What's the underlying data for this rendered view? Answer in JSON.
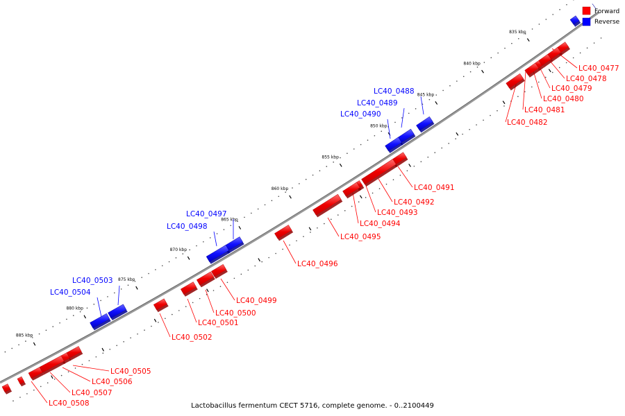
{
  "title": "Lactobacillus fermentum CECT 5716, complete genome. - 0..2100449",
  "legend": {
    "forward_label": "Forward",
    "reverse_label": "Reverse",
    "forward_color": "#ff0000",
    "reverse_color": "#0000ff"
  },
  "ticks": [
    "835 kbp",
    "840 kbp",
    "845 kbp",
    "850 kbp",
    "855 kbp",
    "860 kbp",
    "865 kbp",
    "870 kbp",
    "875 kbp",
    "880 kbp",
    "885 kbp"
  ],
  "forward_genes": [
    "LC40_0477",
    "LC40_0478",
    "LC40_0479",
    "LC40_0480",
    "LC40_0481",
    "LC40_0482",
    "LC40_0491",
    "LC40_0492",
    "LC40_0493",
    "LC40_0494",
    "LC40_0495",
    "LC40_0496",
    "LC40_0499",
    "LC40_0500",
    "LC40_0501",
    "LC40_0502",
    "LC40_0505",
    "LC40_0506",
    "LC40_0507",
    "LC40_0508"
  ],
  "reverse_genes": [
    "LC40_0488",
    "LC40_0489",
    "LC40_0490",
    "LC40_0497",
    "LC40_0498",
    "LC40_0503",
    "LC40_0504"
  ]
}
